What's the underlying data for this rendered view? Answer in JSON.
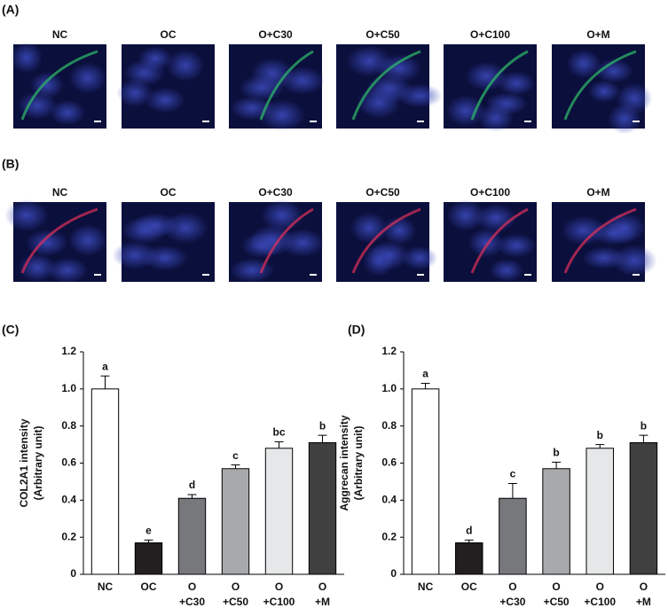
{
  "image_panels": [
    {
      "label": "(A)",
      "columns": [
        "NC",
        "OC",
        "O+C30",
        "O+C50",
        "O+C100",
        "O+M"
      ]
    },
    {
      "label": "(B)",
      "columns": [
        "NC",
        "OC",
        "O+C30",
        "O+C50",
        "O+C100",
        "O+M"
      ]
    }
  ],
  "chart_data": [
    {
      "type": "bar",
      "panel_label": "(C)",
      "ylabel": [
        "COL2A1  intensity",
        "(Arbitrary unit)"
      ],
      "categories": [
        "NC",
        "OC",
        [
          "O",
          "+C30"
        ],
        [
          "O",
          "+C50"
        ],
        [
          "O",
          "+C100"
        ],
        [
          "O",
          "+M"
        ]
      ],
      "values": [
        1.0,
        0.17,
        0.41,
        0.57,
        0.68,
        0.71
      ],
      "errors": [
        0.07,
        0.015,
        0.02,
        0.02,
        0.035,
        0.04
      ],
      "annotations": [
        "a",
        "e",
        "d",
        "c",
        "bc",
        "b"
      ],
      "colors": [
        "#ffffff",
        "#231f20",
        "#77787b",
        "#a7a9ac",
        "#e6e7e8",
        "#404041"
      ],
      "ylim": [
        0,
        1.2
      ],
      "yticks": [
        0,
        0.2,
        0.4,
        0.6,
        0.8,
        {
          "value": 1,
          "label": "1.0"
        },
        1.2
      ]
    },
    {
      "type": "bar",
      "panel_label": "(D)",
      "ylabel": [
        "Aggrecan intensity",
        "(Arbitrary unit)"
      ],
      "categories": [
        "NC",
        "OC",
        [
          "O",
          "+C30"
        ],
        [
          "O",
          "+C50"
        ],
        [
          "O",
          "+C100"
        ],
        [
          "O",
          "+M"
        ]
      ],
      "values": [
        1.0,
        0.17,
        0.41,
        0.57,
        0.68,
        0.71
      ],
      "errors": [
        0.03,
        0.015,
        0.08,
        0.035,
        0.02,
        0.04
      ],
      "annotations": [
        "a",
        "d",
        "c",
        "b",
        "b",
        "b"
      ],
      "colors": [
        "#ffffff",
        "#231f20",
        "#77787b",
        "#a7a9ac",
        "#e6e7e8",
        "#404041"
      ],
      "ylim": [
        0,
        1.2
      ],
      "yticks": [
        0,
        0.2,
        0.4,
        0.6,
        0.8,
        {
          "value": 1,
          "label": "1.0"
        },
        1.2
      ]
    }
  ]
}
